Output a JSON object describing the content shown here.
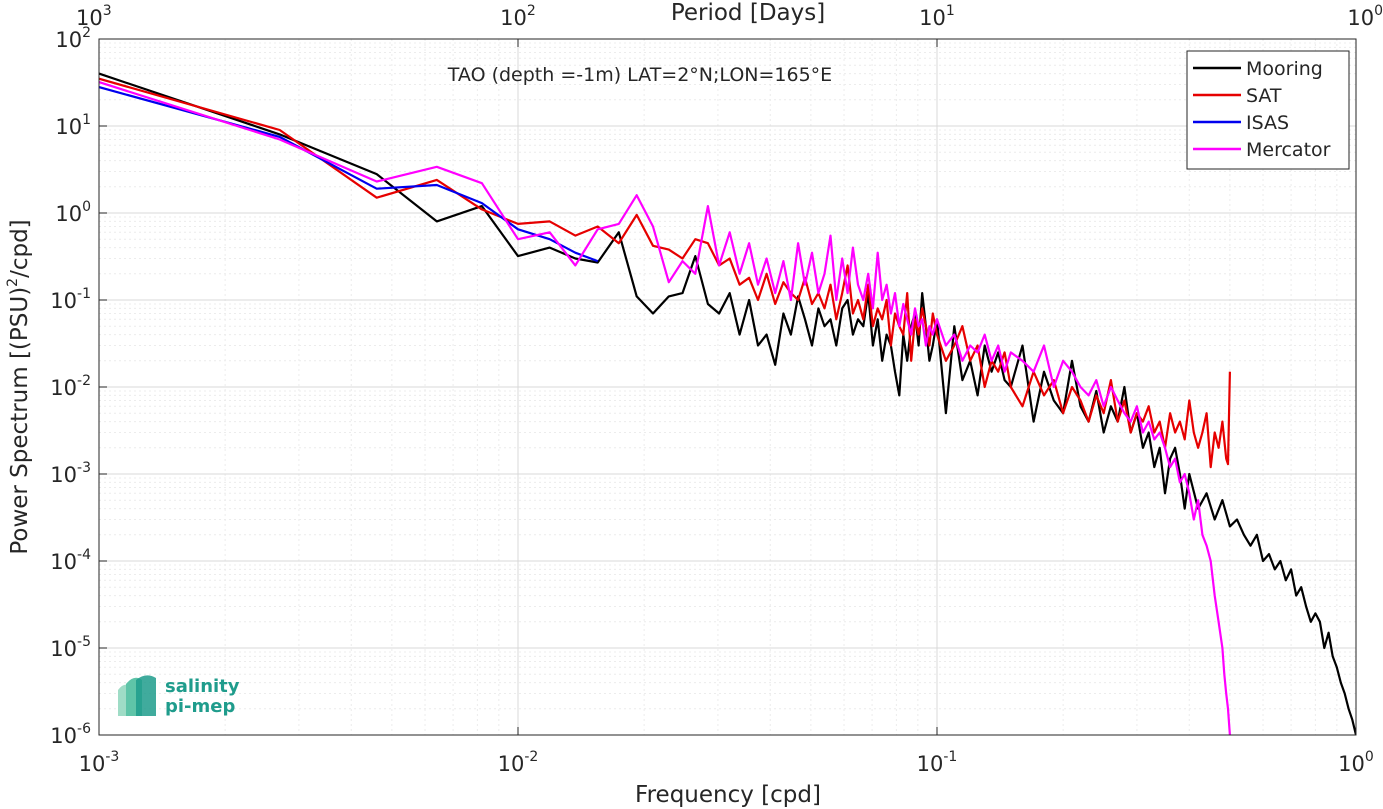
{
  "chart_data": {
    "type": "line",
    "title": "TAO (depth =-1m) LAT=2°N;LON=165°E",
    "xlabel": "Frequency [cpd]",
    "ylabel": "Power Spectrum [(PSU)",
    "ylabel_sup": "2",
    "ylabel_tail": "/cpd]",
    "x2label": "Period [Days]",
    "xscale": "log",
    "yscale": "log",
    "xlim": [
      0.001,
      1
    ],
    "ylim": [
      1e-06,
      100
    ],
    "grid": true,
    "legend_position": "top-right",
    "x_ticks": [
      {
        "value": 0.001,
        "base": "10",
        "exp": "-3"
      },
      {
        "value": 0.01,
        "base": "10",
        "exp": "-2"
      },
      {
        "value": 0.1,
        "base": "10",
        "exp": "-1"
      },
      {
        "value": 1,
        "base": "10",
        "exp": "0"
      }
    ],
    "y_ticks": [
      {
        "value": 1e-06,
        "base": "10",
        "exp": "-6"
      },
      {
        "value": 1e-05,
        "base": "10",
        "exp": "-5"
      },
      {
        "value": 0.0001,
        "base": "10",
        "exp": "-4"
      },
      {
        "value": 0.001,
        "base": "10",
        "exp": "-3"
      },
      {
        "value": 0.01,
        "base": "10",
        "exp": "-2"
      },
      {
        "value": 0.1,
        "base": "10",
        "exp": "-1"
      },
      {
        "value": 1,
        "base": "10",
        "exp": "0"
      },
      {
        "value": 10,
        "base": "10",
        "exp": "1"
      },
      {
        "value": 100,
        "base": "10",
        "exp": "2"
      }
    ],
    "x2_ticks": [
      {
        "position": 0.001,
        "base": "10",
        "exp": "3"
      },
      {
        "position": 0.01,
        "base": "10",
        "exp": "2"
      },
      {
        "position": 0.1,
        "base": "10",
        "exp": "1"
      },
      {
        "position": 1,
        "base": "10",
        "exp": "0"
      }
    ],
    "series": [
      {
        "name": "Mooring",
        "color": "#000000",
        "x": [
          0.001,
          0.0027,
          0.0046,
          0.0064,
          0.0082,
          0.01,
          0.0119,
          0.0137,
          0.0155,
          0.0174,
          0.0192,
          0.021,
          0.0229,
          0.0247,
          0.0265,
          0.0284,
          0.0302,
          0.032,
          0.0338,
          0.0356,
          0.0374,
          0.0392,
          0.0411,
          0.043,
          0.0448,
          0.0466,
          0.0484,
          0.0503,
          0.0521,
          0.0539,
          0.0557,
          0.0575,
          0.0594,
          0.0612,
          0.063,
          0.0648,
          0.0667,
          0.0685,
          0.0703,
          0.0722,
          0.074,
          0.0758,
          0.0776,
          0.0794,
          0.0813,
          0.0831,
          0.0849,
          0.0868,
          0.0886,
          0.0904,
          0.0922,
          0.0941,
          0.0959,
          0.0977,
          0.1,
          0.105,
          0.11,
          0.115,
          0.12,
          0.125,
          0.13,
          0.135,
          0.14,
          0.145,
          0.15,
          0.16,
          0.17,
          0.18,
          0.19,
          0.2,
          0.21,
          0.22,
          0.23,
          0.24,
          0.25,
          0.26,
          0.27,
          0.28,
          0.29,
          0.3,
          0.31,
          0.32,
          0.33,
          0.34,
          0.35,
          0.36,
          0.37,
          0.38,
          0.39,
          0.4,
          0.42,
          0.44,
          0.46,
          0.48,
          0.5,
          0.52,
          0.54,
          0.56,
          0.58,
          0.6,
          0.62,
          0.64,
          0.66,
          0.68,
          0.7,
          0.72,
          0.74,
          0.76,
          0.78,
          0.8,
          0.82,
          0.84,
          0.86,
          0.88,
          0.9,
          0.92,
          0.94,
          0.96,
          0.98,
          1.0
        ],
        "y": [
          40,
          8,
          2.8,
          0.8,
          1.2,
          0.32,
          0.4,
          0.3,
          0.27,
          0.6,
          0.11,
          0.07,
          0.11,
          0.12,
          0.32,
          0.09,
          0.07,
          0.12,
          0.04,
          0.1,
          0.03,
          0.04,
          0.018,
          0.07,
          0.04,
          0.11,
          0.06,
          0.03,
          0.08,
          0.05,
          0.06,
          0.03,
          0.08,
          0.1,
          0.04,
          0.06,
          0.05,
          0.12,
          0.03,
          0.06,
          0.02,
          0.04,
          0.03,
          0.015,
          0.008,
          0.04,
          0.02,
          0.05,
          0.07,
          0.03,
          0.12,
          0.05,
          0.02,
          0.03,
          0.06,
          0.005,
          0.05,
          0.012,
          0.02,
          0.008,
          0.03,
          0.015,
          0.025,
          0.012,
          0.01,
          0.03,
          0.004,
          0.015,
          0.007,
          0.005,
          0.02,
          0.006,
          0.004,
          0.009,
          0.003,
          0.006,
          0.004,
          0.01,
          0.003,
          0.005,
          0.002,
          0.003,
          0.0012,
          0.002,
          0.0006,
          0.0015,
          0.002,
          0.001,
          0.0004,
          0.001,
          0.0004,
          0.0006,
          0.0003,
          0.0005,
          0.00025,
          0.0003,
          0.0002,
          0.00015,
          0.0002,
          0.0001,
          0.00012,
          8e-05,
          0.0001,
          6e-05,
          8e-05,
          4e-05,
          5e-05,
          3e-05,
          2e-05,
          2.5e-05,
          2e-05,
          1e-05,
          1.5e-05,
          8e-06,
          6e-06,
          4e-06,
          3e-06,
          2e-06,
          1.5e-06,
          1e-06
        ]
      },
      {
        "name": "SAT",
        "color": "#e60000",
        "x": [
          0.001,
          0.0027,
          0.0046,
          0.0064,
          0.0082,
          0.01,
          0.0119,
          0.0137,
          0.0155,
          0.0174,
          0.0192,
          0.021,
          0.0229,
          0.0247,
          0.0265,
          0.0284,
          0.0302,
          0.032,
          0.0338,
          0.0356,
          0.0374,
          0.0392,
          0.0411,
          0.043,
          0.0448,
          0.0466,
          0.0484,
          0.0503,
          0.0521,
          0.0539,
          0.0557,
          0.0575,
          0.0594,
          0.0612,
          0.063,
          0.0648,
          0.0667,
          0.0685,
          0.0703,
          0.0722,
          0.074,
          0.0758,
          0.0776,
          0.0794,
          0.0813,
          0.0831,
          0.0849,
          0.0868,
          0.0886,
          0.0904,
          0.0922,
          0.0941,
          0.0959,
          0.0977,
          0.1,
          0.105,
          0.11,
          0.115,
          0.12,
          0.125,
          0.13,
          0.135,
          0.14,
          0.145,
          0.15,
          0.16,
          0.17,
          0.18,
          0.19,
          0.2,
          0.21,
          0.22,
          0.23,
          0.24,
          0.25,
          0.26,
          0.27,
          0.28,
          0.29,
          0.3,
          0.31,
          0.32,
          0.33,
          0.34,
          0.35,
          0.36,
          0.37,
          0.38,
          0.39,
          0.4,
          0.41,
          0.42,
          0.43,
          0.44,
          0.45,
          0.46,
          0.47,
          0.48,
          0.49,
          0.495,
          0.5
        ],
        "y": [
          35,
          9,
          1.5,
          2.4,
          1.1,
          0.75,
          0.8,
          0.55,
          0.7,
          0.45,
          0.95,
          0.42,
          0.38,
          0.3,
          0.5,
          0.45,
          0.25,
          0.3,
          0.15,
          0.18,
          0.1,
          0.2,
          0.09,
          0.16,
          0.12,
          0.1,
          0.18,
          0.09,
          0.12,
          0.08,
          0.15,
          0.06,
          0.12,
          0.25,
          0.07,
          0.1,
          0.06,
          0.15,
          0.05,
          0.08,
          0.06,
          0.1,
          0.03,
          0.07,
          0.05,
          0.04,
          0.12,
          0.02,
          0.06,
          0.04,
          0.08,
          0.05,
          0.03,
          0.07,
          0.04,
          0.02,
          0.03,
          0.05,
          0.02,
          0.03,
          0.01,
          0.02,
          0.015,
          0.025,
          0.01,
          0.006,
          0.015,
          0.008,
          0.012,
          0.005,
          0.01,
          0.007,
          0.004,
          0.008,
          0.005,
          0.012,
          0.004,
          0.007,
          0.003,
          0.005,
          0.004,
          0.006,
          0.003,
          0.004,
          0.002,
          0.005,
          0.003,
          0.004,
          0.0025,
          0.007,
          0.003,
          0.002,
          0.003,
          0.005,
          0.0012,
          0.003,
          0.002,
          0.004,
          0.0015,
          0.0013,
          0.015
        ]
      },
      {
        "name": "ISAS",
        "color": "#0000ee",
        "x": [
          0.001,
          0.0027,
          0.0046,
          0.0064,
          0.0082,
          0.01,
          0.0119,
          0.0137,
          0.0155
        ],
        "y": [
          28,
          7.5,
          1.9,
          2.1,
          1.3,
          0.65,
          0.5,
          0.35,
          0.28
        ]
      },
      {
        "name": "Mercator",
        "color": "#ff00ff",
        "x": [
          0.001,
          0.0027,
          0.0046,
          0.0064,
          0.0082,
          0.01,
          0.0119,
          0.0137,
          0.0155,
          0.0174,
          0.0192,
          0.021,
          0.0229,
          0.0247,
          0.0265,
          0.0284,
          0.0302,
          0.032,
          0.0338,
          0.0356,
          0.0374,
          0.0392,
          0.0411,
          0.043,
          0.0448,
          0.0466,
          0.0484,
          0.0503,
          0.0521,
          0.0539,
          0.0557,
          0.0575,
          0.0594,
          0.0612,
          0.063,
          0.0648,
          0.0667,
          0.0685,
          0.0703,
          0.0722,
          0.074,
          0.0758,
          0.0776,
          0.0794,
          0.0813,
          0.0831,
          0.0849,
          0.0868,
          0.0886,
          0.0904,
          0.0922,
          0.0941,
          0.0959,
          0.0977,
          0.1,
          0.105,
          0.11,
          0.115,
          0.12,
          0.125,
          0.13,
          0.135,
          0.14,
          0.145,
          0.15,
          0.16,
          0.17,
          0.18,
          0.19,
          0.2,
          0.21,
          0.22,
          0.23,
          0.24,
          0.25,
          0.26,
          0.27,
          0.28,
          0.29,
          0.3,
          0.31,
          0.32,
          0.33,
          0.34,
          0.35,
          0.36,
          0.37,
          0.38,
          0.39,
          0.4,
          0.41,
          0.42,
          0.43,
          0.44,
          0.45,
          0.46,
          0.47,
          0.48,
          0.485,
          0.49,
          0.495,
          0.5
        ],
        "y": [
          32,
          7,
          2.3,
          3.4,
          2.2,
          0.5,
          0.6,
          0.25,
          0.65,
          0.75,
          1.6,
          0.7,
          0.16,
          0.28,
          0.2,
          1.2,
          0.25,
          0.6,
          0.2,
          0.45,
          0.15,
          0.3,
          0.12,
          0.28,
          0.1,
          0.45,
          0.15,
          0.35,
          0.12,
          0.2,
          0.55,
          0.1,
          0.3,
          0.12,
          0.4,
          0.15,
          0.1,
          0.2,
          0.08,
          0.35,
          0.1,
          0.15,
          0.07,
          0.12,
          0.05,
          0.09,
          0.06,
          0.04,
          0.08,
          0.05,
          0.06,
          0.03,
          0.05,
          0.04,
          0.06,
          0.03,
          0.04,
          0.02,
          0.03,
          0.025,
          0.04,
          0.02,
          0.03,
          0.015,
          0.025,
          0.02,
          0.015,
          0.03,
          0.01,
          0.02,
          0.015,
          0.01,
          0.008,
          0.012,
          0.006,
          0.01,
          0.007,
          0.005,
          0.004,
          0.006,
          0.003,
          0.004,
          0.0025,
          0.003,
          0.002,
          0.0012,
          0.0015,
          0.0008,
          0.001,
          0.0006,
          0.0003,
          0.0005,
          0.0002,
          0.00015,
          0.0001,
          4e-05,
          2e-05,
          1e-05,
          5e-06,
          3e-06,
          2e-06,
          1e-06
        ]
      }
    ]
  },
  "logo": {
    "line1": "salinity",
    "line2": "pi-mep"
  }
}
